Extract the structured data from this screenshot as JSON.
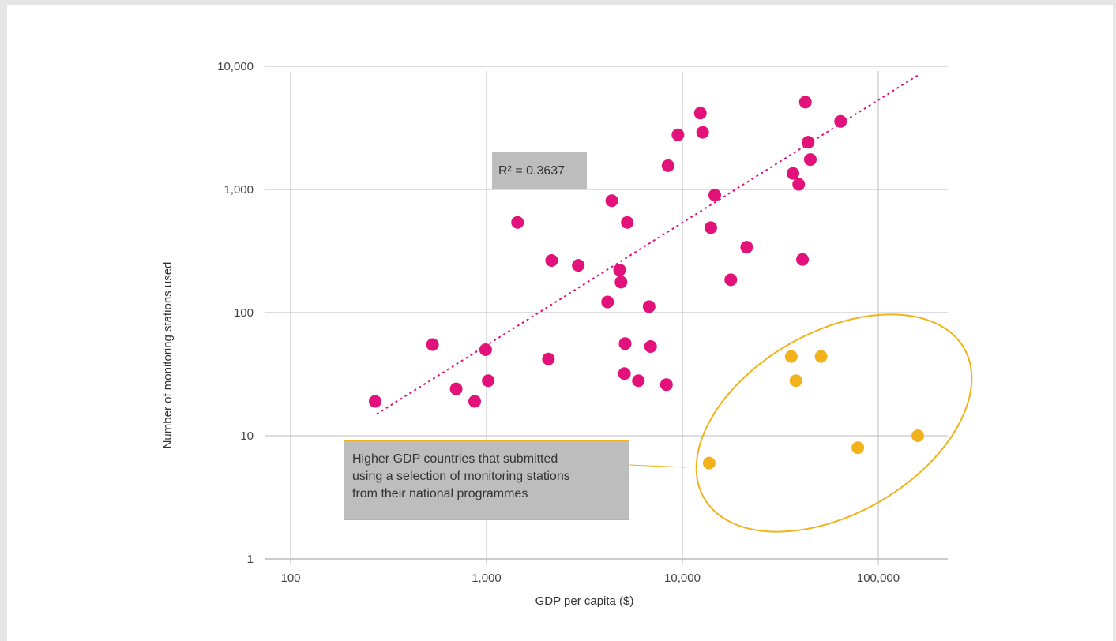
{
  "chart_data": {
    "type": "scatter",
    "title": "",
    "xlabel": "GDP per capita ($)",
    "ylabel": "Number of monitoring stations used",
    "xscale": "log",
    "yscale": "log",
    "xlim": [
      100,
      220000
    ],
    "ylim": [
      1,
      10000
    ],
    "xticks": [
      100,
      1000,
      10000,
      100000
    ],
    "xtick_labels": [
      "100",
      "1,000",
      "10,000",
      "100,000"
    ],
    "yticks": [
      1,
      10,
      100,
      1000,
      10000
    ],
    "ytick_labels": [
      "1",
      "10",
      "100",
      "1,000",
      "10,000"
    ],
    "grid": true,
    "series": [
      {
        "color": "#e2127a",
        "points": [
          [
            270,
            19
          ],
          [
            530,
            55
          ],
          [
            700,
            24
          ],
          [
            870,
            19
          ],
          [
            990,
            50
          ],
          [
            1020,
            28
          ],
          [
            1440,
            540
          ],
          [
            2070,
            42
          ],
          [
            2150,
            265
          ],
          [
            2940,
            242
          ],
          [
            4150,
            122
          ],
          [
            4360,
            810
          ],
          [
            4780,
            222
          ],
          [
            4860,
            177
          ],
          [
            5100,
            56
          ],
          [
            5060,
            32
          ],
          [
            5230,
            540
          ],
          [
            5960,
            28
          ],
          [
            6760,
            112
          ],
          [
            6880,
            53
          ],
          [
            8290,
            26
          ],
          [
            8450,
            1560
          ],
          [
            9490,
            2780
          ],
          [
            12350,
            4170
          ],
          [
            12690,
            2910
          ],
          [
            13960,
            490
          ],
          [
            14630,
            900
          ],
          [
            17660,
            185
          ],
          [
            21290,
            340
          ],
          [
            36700,
            1350
          ],
          [
            39240,
            1100
          ],
          [
            41030,
            270
          ],
          [
            42470,
            5120
          ],
          [
            43860,
            2420
          ],
          [
            44990,
            1750
          ],
          [
            64200,
            3570
          ]
        ]
      },
      {
        "color": "#f2b21c",
        "points": [
          [
            13700,
            6
          ],
          [
            35950,
            44
          ],
          [
            38000,
            28
          ],
          [
            51050,
            44
          ],
          [
            78650,
            8
          ],
          [
            159150,
            10
          ]
        ]
      }
    ],
    "trendline": {
      "type": "power",
      "from": [
        275,
        15
      ],
      "to": [
        160000,
        8500
      ],
      "color": "#e2127a"
    },
    "annotations": {
      "r_squared": "R² = 0.3637",
      "callout_lines": [
        "Higher GDP countries that submitted",
        "using a selection of monitoring stations",
        "from their national programmes"
      ]
    }
  }
}
